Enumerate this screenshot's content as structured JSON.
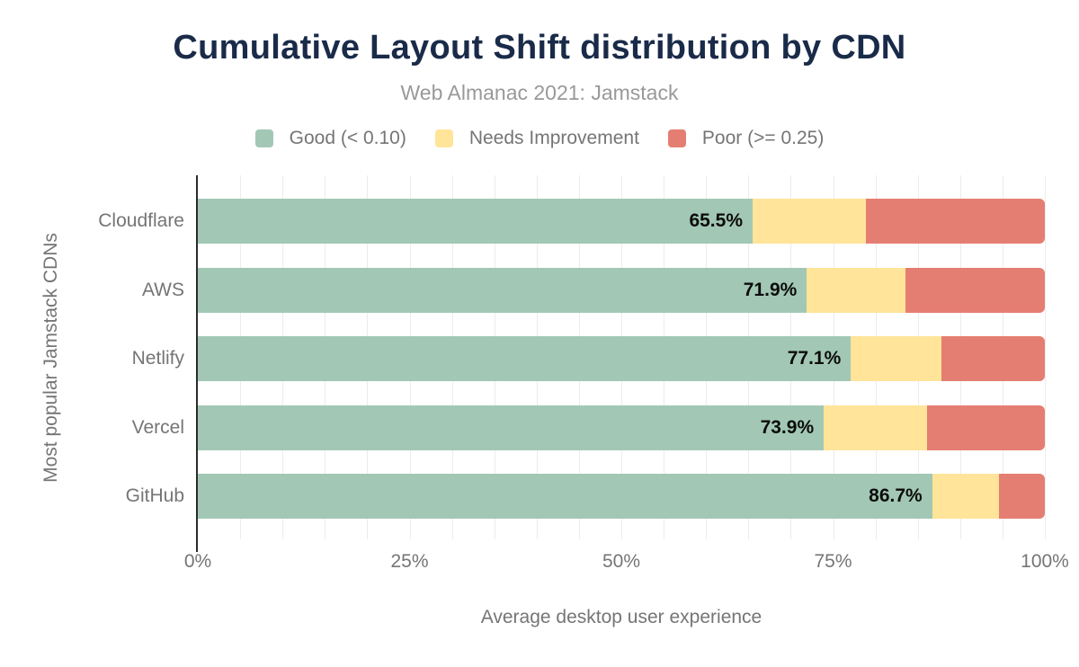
{
  "title": "Cumulative Layout Shift distribution by CDN",
  "subtitle": "Web Almanac 2021: Jamstack",
  "colors": {
    "good": "#a2c8b5",
    "needs_improvement": "#ffe499",
    "poor": "#e57e72",
    "title_text": "#1a2b49",
    "axis_text": "#757575",
    "gridline": "#ececec",
    "axis_line": "#2b2b2b"
  },
  "legend": [
    {
      "label": "Good (< 0.10)",
      "color": "#a2c8b5"
    },
    {
      "label": "Needs Improvement",
      "color": "#ffe499"
    },
    {
      "label": "Poor (>= 0.25)",
      "color": "#e57e72"
    }
  ],
  "chart_data": {
    "type": "bar",
    "orientation": "horizontal",
    "stacked": true,
    "title": "Cumulative Layout Shift distribution by CDN",
    "subtitle": "Web Almanac 2021: Jamstack",
    "categories": [
      "Cloudflare",
      "AWS",
      "Netlify",
      "Vercel",
      "GitHub"
    ],
    "series": [
      {
        "name": "Good (< 0.10)",
        "color": "#a2c8b5",
        "values": [
          65.5,
          71.9,
          77.1,
          73.9,
          86.7
        ]
      },
      {
        "name": "Needs Improvement",
        "color": "#ffe499",
        "values": [
          13.4,
          11.6,
          10.7,
          12.2,
          7.9
        ]
      },
      {
        "name": "Poor (>= 0.25)",
        "color": "#e57e72",
        "values": [
          21.1,
          16.5,
          12.2,
          13.9,
          5.4
        ]
      }
    ],
    "bar_labels": [
      "65.5%",
      "71.9%",
      "77.1%",
      "73.9%",
      "86.7%"
    ],
    "xlabel": "Average desktop user experience",
    "ylabel": "Most popular Jamstack CDNs",
    "x_ticks": [
      "0%",
      "25%",
      "50%",
      "75%",
      "100%"
    ],
    "x_tick_positions": [
      0,
      25,
      50,
      75,
      100
    ],
    "xlim": [
      0,
      100
    ],
    "grid": "vertical gridlines every 5%",
    "legend_position": "top"
  }
}
